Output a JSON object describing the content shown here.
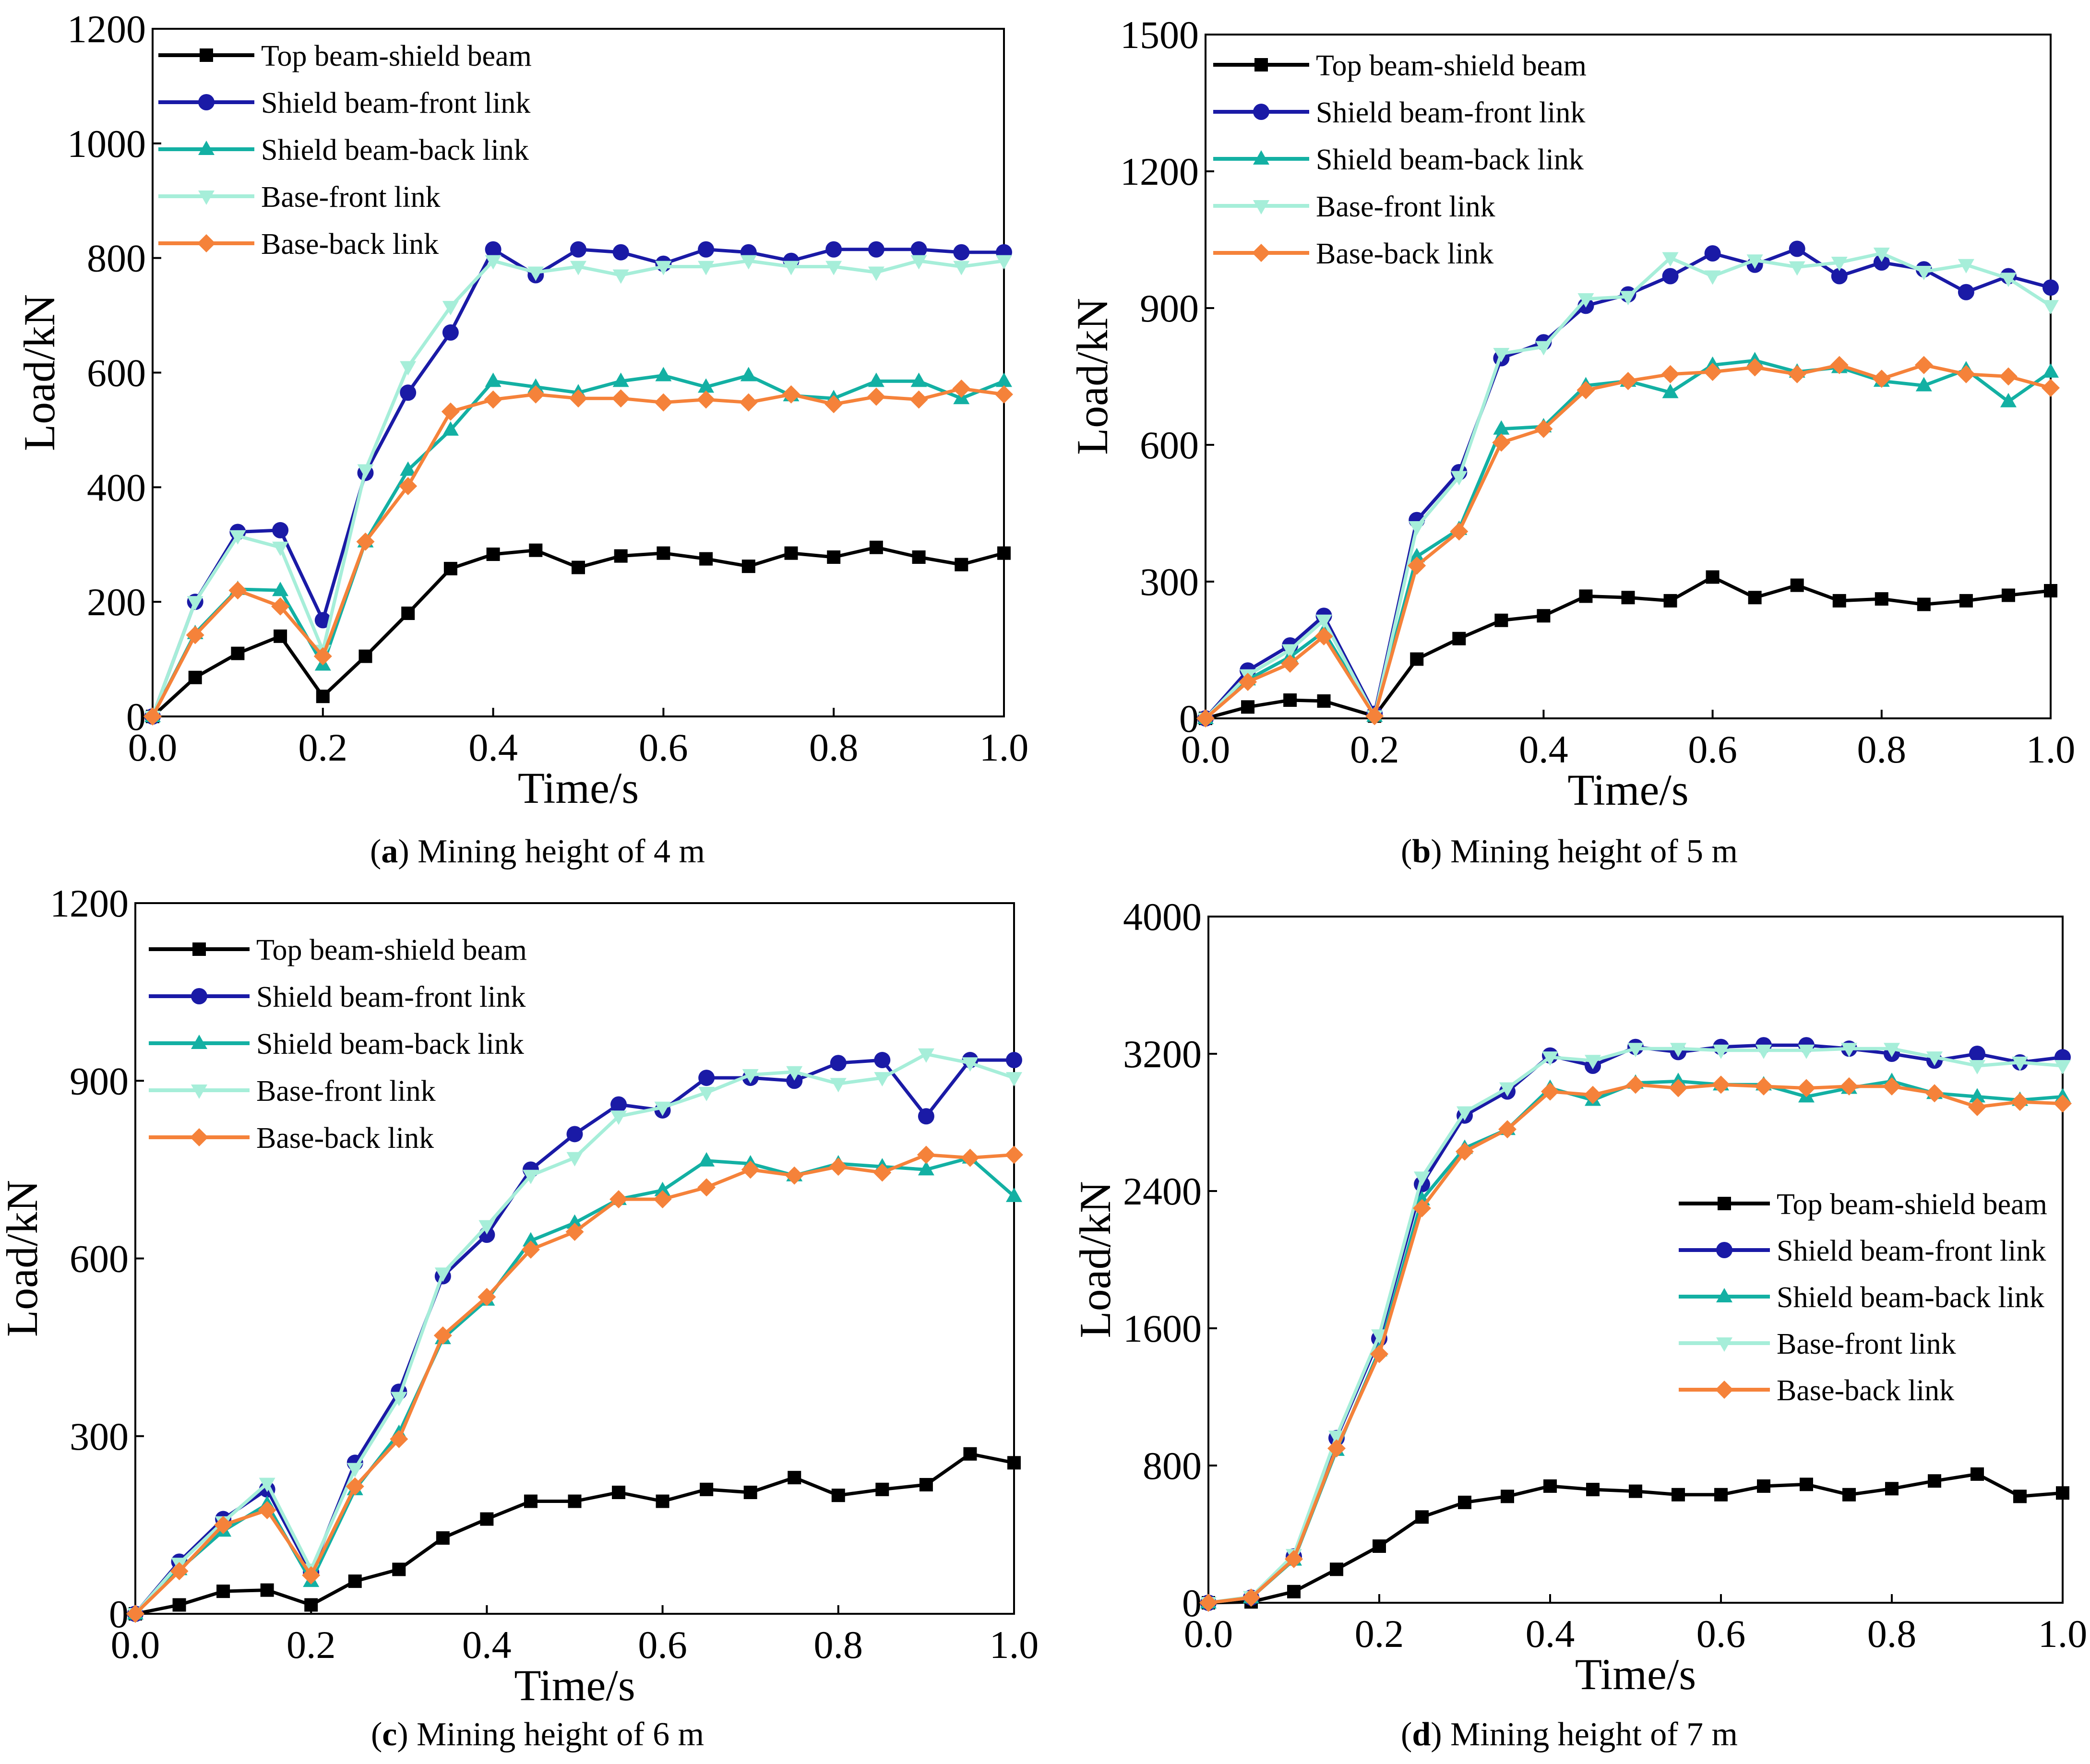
{
  "chart_data": [
    {
      "type": "line",
      "panel_letter": "a",
      "caption_text": "Mining height of 4 m",
      "xlabel": "Time/s",
      "ylabel": "Load/kN",
      "xlim": [
        0,
        1.0
      ],
      "ylim": [
        0,
        1200
      ],
      "xticks": [
        "0.0",
        "0.2",
        "0.4",
        "0.6",
        "0.8",
        "1.0"
      ],
      "yticks": [
        "0",
        "200",
        "400",
        "600",
        "800",
        "1000",
        "1200"
      ],
      "legend_position": "top-left",
      "x": [
        0,
        0.05,
        0.1,
        0.15,
        0.2,
        0.25,
        0.3,
        0.35,
        0.4,
        0.45,
        0.5,
        0.55,
        0.6,
        0.65,
        0.7,
        0.75,
        0.8,
        0.85,
        0.9,
        0.95,
        1.0
      ],
      "series": [
        {
          "name": "Top beam-shield beam",
          "color": "#000000",
          "marker": "square",
          "values": [
            0,
            68,
            110,
            140,
            35,
            105,
            180,
            258,
            283,
            290,
            260,
            280,
            285,
            275,
            262,
            285,
            278,
            295,
            278,
            265,
            285
          ]
        },
        {
          "name": "Shield beam-front link",
          "color": "#1a1aa6",
          "marker": "circle",
          "values": [
            0,
            200,
            322,
            325,
            168,
            425,
            565,
            670,
            815,
            770,
            815,
            810,
            790,
            815,
            810,
            795,
            815,
            815,
            815,
            810,
            810
          ]
        },
        {
          "name": "Shield beam-back link",
          "color": "#13b0a3",
          "marker": "triangle-up",
          "values": [
            0,
            145,
            222,
            220,
            90,
            305,
            430,
            500,
            585,
            575,
            565,
            585,
            595,
            575,
            595,
            560,
            555,
            585,
            585,
            555,
            585
          ]
        },
        {
          "name": "Base-front link",
          "color": "#a6eed9",
          "marker": "triangle-down",
          "values": [
            0,
            200,
            315,
            295,
            115,
            430,
            610,
            715,
            795,
            775,
            785,
            770,
            785,
            785,
            795,
            785,
            785,
            775,
            795,
            785,
            795
          ]
        },
        {
          "name": "Base-back link",
          "color": "#f5823a",
          "marker": "diamond",
          "values": [
            0,
            142,
            220,
            192,
            105,
            305,
            402,
            532,
            553,
            562,
            555,
            555,
            548,
            553,
            548,
            562,
            545,
            558,
            553,
            572,
            562
          ]
        }
      ]
    },
    {
      "type": "line",
      "panel_letter": "b",
      "caption_text": "Mining height of 5 m",
      "xlabel": "Time/s",
      "ylabel": "Load/kN",
      "xlim": [
        0,
        1.0
      ],
      "ylim": [
        0,
        1500
      ],
      "xticks": [
        "0.0",
        "0.2",
        "0.4",
        "0.6",
        "0.8",
        "1.0"
      ],
      "yticks": [
        "0",
        "300",
        "600",
        "900",
        "1200",
        "1500"
      ],
      "legend_position": "top-left",
      "x": [
        0,
        0.05,
        0.1,
        0.14,
        0.2,
        0.25,
        0.3,
        0.35,
        0.4,
        0.45,
        0.5,
        0.55,
        0.6,
        0.65,
        0.7,
        0.75,
        0.8,
        0.85,
        0.9,
        0.95,
        1.0
      ],
      "series": [
        {
          "name": "Top beam-shield beam",
          "color": "#000000",
          "marker": "square",
          "values": [
            0,
            25,
            40,
            38,
            5,
            130,
            175,
            215,
            225,
            268,
            265,
            258,
            310,
            265,
            292,
            258,
            262,
            250,
            258,
            270,
            280
          ]
        },
        {
          "name": "Shield beam-front link",
          "color": "#1a1aa6",
          "marker": "circle",
          "values": [
            0,
            105,
            160,
            225,
            10,
            435,
            540,
            790,
            825,
            905,
            930,
            970,
            1020,
            995,
            1030,
            970,
            1000,
            985,
            935,
            970,
            945
          ]
        },
        {
          "name": "Shield beam-back link",
          "color": "#13b0a3",
          "marker": "triangle-up",
          "values": [
            0,
            85,
            135,
            190,
            5,
            355,
            415,
            635,
            640,
            730,
            740,
            715,
            775,
            785,
            760,
            770,
            740,
            730,
            765,
            695,
            760
          ]
        },
        {
          "name": "Base-front link",
          "color": "#a6eed9",
          "marker": "triangle-down",
          "values": [
            0,
            95,
            150,
            215,
            5,
            420,
            530,
            800,
            815,
            920,
            925,
            1010,
            970,
            1005,
            990,
            1000,
            1020,
            980,
            995,
            965,
            905
          ]
        },
        {
          "name": "Base-back link",
          "color": "#f5823a",
          "marker": "diamond",
          "values": [
            0,
            80,
            120,
            180,
            5,
            335,
            410,
            605,
            635,
            720,
            740,
            755,
            760,
            770,
            755,
            775,
            745,
            775,
            755,
            750,
            725
          ]
        }
      ]
    },
    {
      "type": "line",
      "panel_letter": "c",
      "caption_text": "Mining height of 6 m",
      "xlabel": "Time/s",
      "ylabel": "Load/kN",
      "xlim": [
        0,
        1.0
      ],
      "ylim": [
        0,
        1200
      ],
      "xticks": [
        "0.0",
        "0.2",
        "0.4",
        "0.6",
        "0.8",
        "1.0"
      ],
      "yticks": [
        "0",
        "300",
        "600",
        "900",
        "1200"
      ],
      "legend_position": "top-left",
      "x": [
        0,
        0.05,
        0.1,
        0.15,
        0.2,
        0.25,
        0.3,
        0.35,
        0.4,
        0.45,
        0.5,
        0.55,
        0.6,
        0.65,
        0.7,
        0.75,
        0.8,
        0.85,
        0.9,
        0.95,
        1.0
      ],
      "series": [
        {
          "name": "Top beam-shield beam",
          "color": "#000000",
          "marker": "square",
          "values": [
            0,
            15,
            38,
            40,
            15,
            55,
            75,
            128,
            160,
            190,
            190,
            205,
            190,
            210,
            205,
            230,
            200,
            210,
            218,
            270,
            255
          ]
        },
        {
          "name": "Shield beam-front link",
          "color": "#1a1aa6",
          "marker": "circle",
          "values": [
            0,
            88,
            160,
            210,
            70,
            255,
            375,
            570,
            640,
            750,
            810,
            860,
            850,
            905,
            905,
            900,
            930,
            935,
            840,
            935,
            935
          ]
        },
        {
          "name": "Shield beam-back link",
          "color": "#13b0a3",
          "marker": "triangle-up",
          "values": [
            0,
            75,
            140,
            185,
            55,
            210,
            305,
            465,
            530,
            630,
            660,
            700,
            715,
            765,
            760,
            740,
            760,
            755,
            750,
            770,
            705
          ]
        },
        {
          "name": "Base-front link",
          "color": "#a6eed9",
          "marker": "triangle-down",
          "values": [
            0,
            85,
            155,
            220,
            75,
            245,
            365,
            575,
            655,
            740,
            770,
            840,
            855,
            880,
            910,
            915,
            895,
            905,
            945,
            930,
            905
          ]
        },
        {
          "name": "Base-back link",
          "color": "#f5823a",
          "marker": "diamond",
          "values": [
            0,
            72,
            150,
            175,
            65,
            215,
            295,
            470,
            535,
            615,
            645,
            700,
            700,
            720,
            750,
            740,
            755,
            745,
            775,
            770,
            775
          ]
        }
      ]
    },
    {
      "type": "line",
      "panel_letter": "d",
      "caption_text": "Mining height of 7 m",
      "xlabel": "Time/s",
      "ylabel": "Load/kN",
      "xlim": [
        0,
        1.0
      ],
      "ylim": [
        0,
        4000
      ],
      "xticks": [
        "0.0",
        "0.2",
        "0.4",
        "0.6",
        "0.8",
        "1.0"
      ],
      "yticks": [
        "0",
        "800",
        "1600",
        "2400",
        "3200",
        "4000"
      ],
      "legend_position": "center-right",
      "x": [
        0,
        0.05,
        0.1,
        0.15,
        0.2,
        0.25,
        0.3,
        0.35,
        0.4,
        0.45,
        0.5,
        0.55,
        0.6,
        0.65,
        0.7,
        0.75,
        0.8,
        0.85,
        0.9,
        0.95,
        1.0
      ],
      "series": [
        {
          "name": "Top beam-shield beam",
          "color": "#000000",
          "marker": "square",
          "values": [
            0,
            5,
            65,
            195,
            330,
            500,
            585,
            620,
            680,
            660,
            650,
            630,
            630,
            680,
            690,
            630,
            665,
            710,
            750,
            620,
            640
          ]
        },
        {
          "name": "Shield beam-front link",
          "color": "#1a1aa6",
          "marker": "circle",
          "values": [
            0,
            30,
            270,
            960,
            1540,
            2440,
            2840,
            2980,
            3190,
            3130,
            3240,
            3210,
            3240,
            3250,
            3250,
            3230,
            3200,
            3160,
            3200,
            3150,
            3180
          ]
        },
        {
          "name": "Shield beam-back link",
          "color": "#13b0a3",
          "marker": "triangle-up",
          "values": [
            0,
            30,
            250,
            890,
            1470,
            2350,
            2650,
            2760,
            3000,
            2930,
            3030,
            3040,
            3020,
            3020,
            2950,
            3000,
            3040,
            2970,
            2950,
            2930,
            2950
          ]
        },
        {
          "name": "Base-front link",
          "color": "#a6eed9",
          "marker": "triangle-down",
          "values": [
            0,
            35,
            280,
            970,
            1560,
            2480,
            2860,
            3000,
            3180,
            3160,
            3230,
            3230,
            3220,
            3220,
            3220,
            3230,
            3230,
            3180,
            3130,
            3150,
            3130
          ]
        },
        {
          "name": "Base-back link",
          "color": "#f5823a",
          "marker": "diamond",
          "values": [
            0,
            30,
            255,
            900,
            1450,
            2300,
            2630,
            2760,
            2980,
            2960,
            3020,
            3000,
            3020,
            3010,
            3000,
            3010,
            3010,
            2970,
            2890,
            2920,
            2910
          ]
        }
      ]
    }
  ]
}
